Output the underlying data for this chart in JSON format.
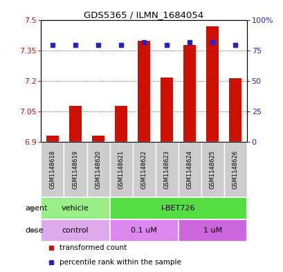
{
  "title": "GDS5365 / ILMN_1684054",
  "samples": [
    "GSM1148618",
    "GSM1148619",
    "GSM1148620",
    "GSM1148621",
    "GSM1148622",
    "GSM1148623",
    "GSM1148624",
    "GSM1148625",
    "GSM1148626"
  ],
  "bar_values": [
    6.93,
    7.08,
    6.93,
    7.08,
    7.4,
    7.22,
    7.38,
    7.47,
    7.215
  ],
  "percentile_values": [
    80,
    80,
    80,
    80,
    82,
    80,
    82,
    82,
    80
  ],
  "bar_bottom": 6.9,
  "ylim_left": [
    6.9,
    7.5
  ],
  "ylim_right": [
    0,
    100
  ],
  "yticks_left": [
    6.9,
    7.05,
    7.2,
    7.35,
    7.5
  ],
  "yticks_right": [
    0,
    25,
    50,
    75,
    100
  ],
  "ytick_labels_left": [
    "6.9",
    "7.05",
    "7.2",
    "7.35",
    "7.5"
  ],
  "ytick_labels_right": [
    "0",
    "25",
    "50",
    "75",
    "100%"
  ],
  "bar_color": "#CC1100",
  "dot_color": "#2222CC",
  "grid_color": "black",
  "agent_groups": [
    {
      "label": "vehicle",
      "start": 0,
      "end": 3,
      "color": "#99EE88"
    },
    {
      "label": "I-BET726",
      "start": 3,
      "end": 9,
      "color": "#55DD44"
    }
  ],
  "dose_groups": [
    {
      "label": "control",
      "start": 0,
      "end": 3,
      "color": "#DDAAEE"
    },
    {
      "label": "0.1 uM",
      "start": 3,
      "end": 6,
      "color": "#DD88EE"
    },
    {
      "label": "1 uM",
      "start": 6,
      "end": 9,
      "color": "#CC66DD"
    }
  ],
  "legend_items": [
    {
      "label": "transformed count",
      "color": "#CC1100"
    },
    {
      "label": "percentile rank within the sample",
      "color": "#2222CC"
    }
  ],
  "sample_box_color": "#CCCCCC",
  "background_color": "#FFFFFF"
}
